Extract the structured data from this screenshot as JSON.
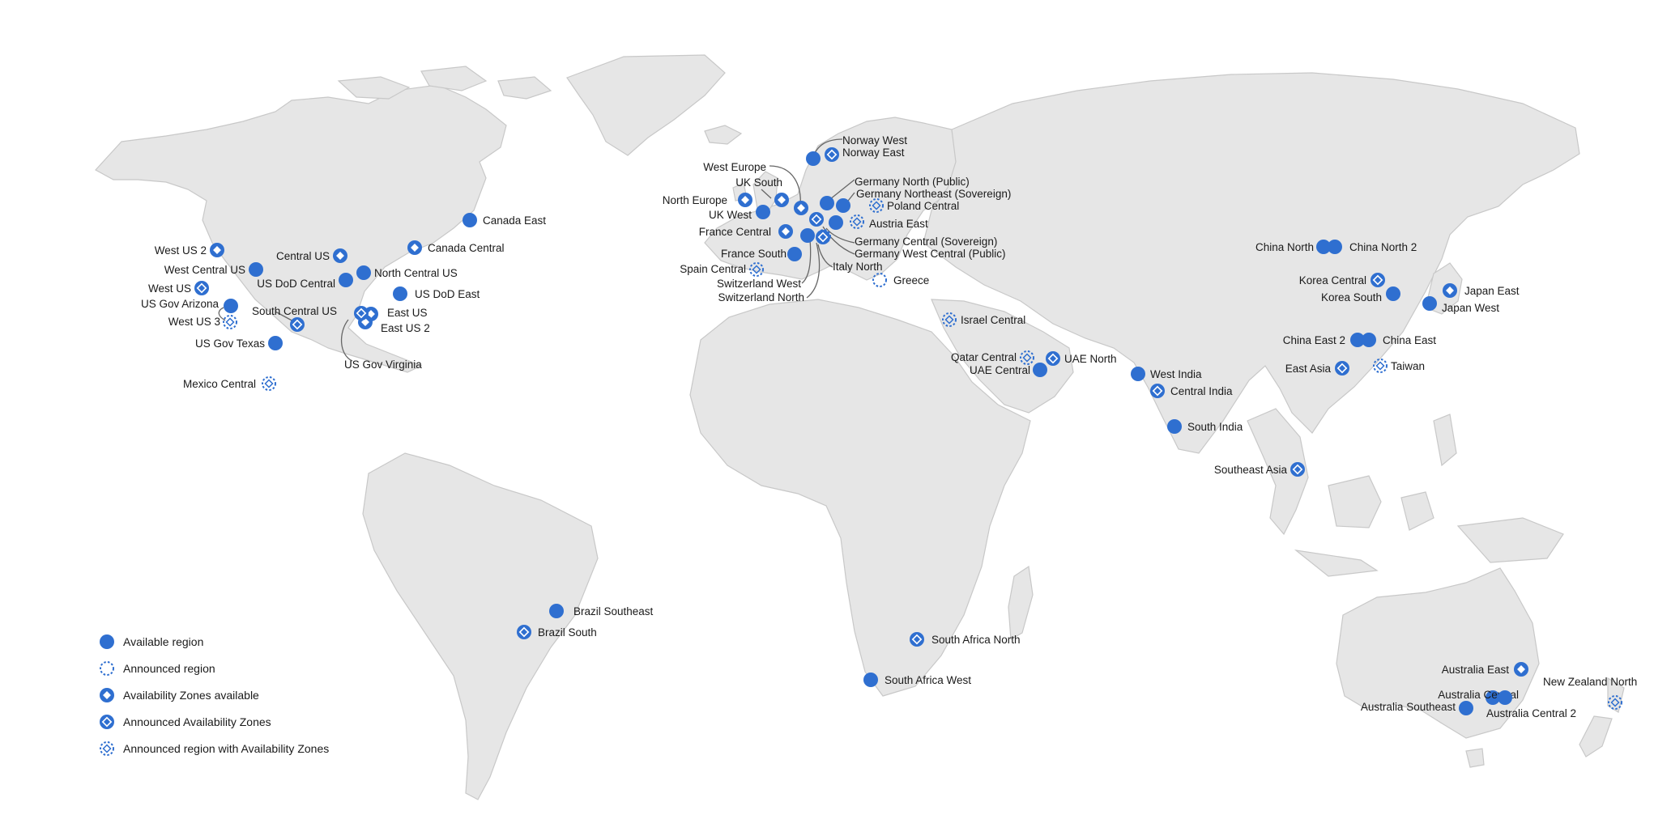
{
  "colors": {
    "marker": "#2f6fd0",
    "land": "#e6e6e6",
    "coast": "#c8c8c8",
    "label": "#1a1a1a",
    "leader": "#666666"
  },
  "legend": [
    {
      "type": "available",
      "label": "Available region"
    },
    {
      "type": "announced",
      "label": "Announced region"
    },
    {
      "type": "az",
      "label": "Availability Zones available"
    },
    {
      "type": "announced-az",
      "label": "Announced Availability Zones"
    },
    {
      "type": "announced-region-az",
      "label": "Announced region with Availability Zones"
    }
  ],
  "regions": [
    {
      "name": "West US 2",
      "type": "az"
    },
    {
      "name": "West Central US",
      "type": "available"
    },
    {
      "name": "West US",
      "type": "announced-az"
    },
    {
      "name": "US Gov Arizona",
      "type": "available"
    },
    {
      "name": "West US 3",
      "type": "announced-region-az"
    },
    {
      "name": "US Gov Texas",
      "type": "available"
    },
    {
      "name": "Mexico Central",
      "type": "announced-region-az"
    },
    {
      "name": "Central US",
      "type": "az"
    },
    {
      "name": "US DoD Central",
      "type": "available"
    },
    {
      "name": "North Central US",
      "type": "available"
    },
    {
      "name": "South Central US",
      "type": "announced-az"
    },
    {
      "name": "East US",
      "type": "az"
    },
    {
      "name": "East US 2",
      "type": "az"
    },
    {
      "name": "US Gov Virginia",
      "type": "announced-az"
    },
    {
      "name": "US DoD East",
      "type": "available"
    },
    {
      "name": "Canada East",
      "type": "available"
    },
    {
      "name": "Canada Central",
      "type": "az"
    },
    {
      "name": "Brazil Southeast",
      "type": "available"
    },
    {
      "name": "Brazil South",
      "type": "announced-az"
    },
    {
      "name": "Norway West",
      "type": "available"
    },
    {
      "name": "Norway East",
      "type": "announced-az"
    },
    {
      "name": "West Europe",
      "type": "az"
    },
    {
      "name": "UK South",
      "type": "az"
    },
    {
      "name": "North Europe",
      "type": "az"
    },
    {
      "name": "UK West",
      "type": "available"
    },
    {
      "name": "Germany North (Public)",
      "type": "available"
    },
    {
      "name": "Germany Northeast (Sovereign)",
      "type": "available"
    },
    {
      "name": "Poland Central",
      "type": "announced-region-az"
    },
    {
      "name": "Austria East",
      "type": "announced-region-az"
    },
    {
      "name": "France Central",
      "type": "az"
    },
    {
      "name": "Germany Central (Sovereign)",
      "type": "available"
    },
    {
      "name": "Germany West Central (Public)",
      "type": "announced-az"
    },
    {
      "name": "France South",
      "type": "available"
    },
    {
      "name": "Spain Central",
      "type": "announced-region-az"
    },
    {
      "name": "Italy North",
      "type": "announced-region-az"
    },
    {
      "name": "Switzerland West",
      "type": "available"
    },
    {
      "name": "Switzerland North",
      "type": "announced-az"
    },
    {
      "name": "Greece",
      "type": "announced"
    },
    {
      "name": "Israel Central",
      "type": "announced-region-az"
    },
    {
      "name": "Qatar Central",
      "type": "announced-region-az"
    },
    {
      "name": "UAE North",
      "type": "announced-az"
    },
    {
      "name": "UAE Central",
      "type": "available"
    },
    {
      "name": "South Africa North",
      "type": "announced-az"
    },
    {
      "name": "South Africa West",
      "type": "available"
    },
    {
      "name": "West India",
      "type": "available"
    },
    {
      "name": "Central India",
      "type": "announced-az"
    },
    {
      "name": "South India",
      "type": "available"
    },
    {
      "name": "China North",
      "type": "available"
    },
    {
      "name": "China North 2",
      "type": "available"
    },
    {
      "name": "Korea Central",
      "type": "announced-az"
    },
    {
      "name": "Korea South",
      "type": "available"
    },
    {
      "name": "Japan East",
      "type": "az"
    },
    {
      "name": "Japan West",
      "type": "available"
    },
    {
      "name": "China East 2",
      "type": "available"
    },
    {
      "name": "China East",
      "type": "available"
    },
    {
      "name": "East Asia",
      "type": "announced-az"
    },
    {
      "name": "Taiwan",
      "type": "announced-region-az"
    },
    {
      "name": "Southeast Asia",
      "type": "announced-az"
    },
    {
      "name": "Australia East",
      "type": "az"
    },
    {
      "name": "Australia Central",
      "type": "available"
    },
    {
      "name": "Australia Central 2",
      "type": "available"
    },
    {
      "name": "Australia Southeast",
      "type": "available"
    },
    {
      "name": "New Zealand North",
      "type": "announced-region-az"
    }
  ]
}
